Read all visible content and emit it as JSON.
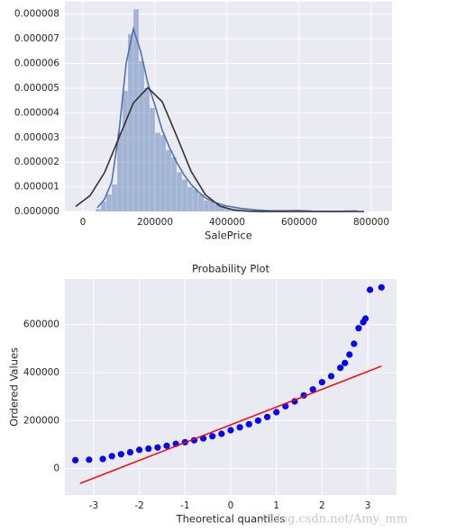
{
  "watermark": "//blog.csdn.net/Amy_mm",
  "chart_data": [
    {
      "type": "histogram",
      "x_label": "SalePrice",
      "color": "#4c72b0",
      "grid": true,
      "xlim": [
        -50000,
        857500
      ],
      "ylim": [
        0,
        8.5e-06
      ],
      "xticks": [
        0,
        200000,
        400000,
        600000,
        800000
      ],
      "yticks": [
        {
          "value": 0,
          "label": "0.000000"
        },
        {
          "value": 1e-06,
          "label": "0.000001"
        },
        {
          "value": 2e-06,
          "label": "0.000002"
        },
        {
          "value": 3e-06,
          "label": "0.000003"
        },
        {
          "value": 4e-06,
          "label": "0.000004"
        },
        {
          "value": 5e-06,
          "label": "0.000005"
        },
        {
          "value": 6e-06,
          "label": "0.000006"
        },
        {
          "value": 7e-06,
          "label": "0.000007"
        },
        {
          "value": 8e-06,
          "label": "0.000008"
        }
      ],
      "bins": [
        35000,
        50000,
        65000,
        80000,
        95000,
        110000,
        125000,
        140000,
        155000,
        170000,
        185000,
        200000,
        215000,
        230000,
        245000,
        260000,
        275000,
        290000,
        305000,
        320000,
        335000,
        350000,
        365000,
        380000,
        395000,
        410000,
        425000,
        440000,
        455000,
        470000,
        485000,
        500000,
        515000,
        530000,
        545000,
        560000,
        575000,
        590000,
        605000,
        620000,
        635000,
        650000,
        665000,
        680000,
        695000,
        710000,
        725000,
        740000,
        755000
      ],
      "counts": [
        1e-07,
        4e-07,
        7e-07,
        1.1e-06,
        3.2e-06,
        4.9e-06,
        7.2e-06,
        8.2e-06,
        6.1e-06,
        5e-06,
        4.2e-06,
        3.2e-06,
        3.1e-06,
        2.5e-06,
        2.2e-06,
        1.6e-06,
        1.3e-06,
        1e-06,
        9e-07,
        7e-07,
        4.5e-07,
        4e-07,
        3e-07,
        2.5e-07,
        1.5e-07,
        1.2e-07,
        1e-07,
        7e-08,
        5e-08,
        5e-08,
        4e-08,
        2e-08,
        2e-08,
        1e-08,
        3e-08,
        2e-08,
        1e-08,
        1e-08,
        0,
        0,
        0,
        0,
        0,
        0,
        0,
        0,
        1e-08,
        1e-08
      ],
      "lines": [
        {
          "color": "#4c72b0",
          "x": [
            40000,
            60000,
            80000,
            100000,
            120000,
            140000,
            160000,
            180000,
            200000,
            220000,
            240000,
            260000,
            280000,
            300000,
            320000,
            340000,
            360000,
            380000,
            400000,
            440000,
            480000,
            520000,
            560000,
            600000,
            640000,
            700000,
            760000
          ],
          "y": [
            1.5e-07,
            5e-07,
            1.2e-06,
            3.2e-06,
            6e-06,
            7.4e-06,
            6.5e-06,
            5.2e-06,
            4.3e-06,
            3.3e-06,
            2.6e-06,
            2e-06,
            1.5e-06,
            1.1e-06,
            8e-07,
            5.5e-07,
            4e-07,
            3e-07,
            2.2e-07,
            1.2e-07,
            6e-08,
            3e-08,
            3e-08,
            4e-08,
            1e-08,
            5e-09,
            2e-08
          ]
        },
        {
          "color": "#333333",
          "x": [
            -20000,
            20000,
            60000,
            100000,
            140000,
            180000,
            220000,
            260000,
            300000,
            340000,
            380000,
            420000,
            460000,
            500000,
            580000,
            700000,
            780000
          ],
          "y": [
            2.05e-07,
            6.45e-07,
            1.577e-06,
            2.99e-06,
            4.4e-06,
            5.02e-06,
            4.45e-06,
            3.06e-06,
            1.63e-06,
            6.76e-07,
            2.17e-07,
            5.4e-08,
            1.05e-08,
            1.5e-09,
            0,
            0,
            0
          ]
        }
      ]
    },
    {
      "type": "scatter",
      "title": "Probability Plot",
      "x_label": "Theoretical quantiles",
      "y_label": "Ordered Values",
      "color": "#0000ff",
      "grid": true,
      "xlim": [
        -3.63,
        3.63
      ],
      "ylim": [
        -110000,
        790000
      ],
      "xticks": [
        -3,
        -2,
        -1,
        0,
        1,
        2,
        3
      ],
      "yticks": [
        0,
        200000,
        400000,
        600000
      ],
      "x": [
        -3.4,
        -3.1,
        -2.8,
        -2.6,
        -2.4,
        -2.2,
        -2.0,
        -1.8,
        -1.6,
        -1.4,
        -1.2,
        -1.0,
        -0.8,
        -0.6,
        -0.4,
        -0.2,
        0,
        0.2,
        0.4,
        0.6,
        0.8,
        1.0,
        1.2,
        1.4,
        1.6,
        1.8,
        2.0,
        2.2,
        2.4,
        2.5,
        2.6,
        2.7,
        2.8,
        2.9,
        2.95,
        3.05,
        3.3
      ],
      "y": [
        35000,
        37000,
        40000,
        52000,
        60000,
        68000,
        78000,
        83000,
        88000,
        95000,
        103000,
        110000,
        118000,
        126000,
        135000,
        145000,
        160000,
        172000,
        185000,
        200000,
        215000,
        235000,
        260000,
        280000,
        305000,
        330000,
        360000,
        385000,
        420000,
        440000,
        475000,
        520000,
        585000,
        610000,
        625000,
        745000,
        755000
      ],
      "fit_line": {
        "color": "#ff0000",
        "x": [
          -3.3,
          3.3
        ],
        "y": [
          -62000,
          427000
        ]
      }
    }
  ]
}
